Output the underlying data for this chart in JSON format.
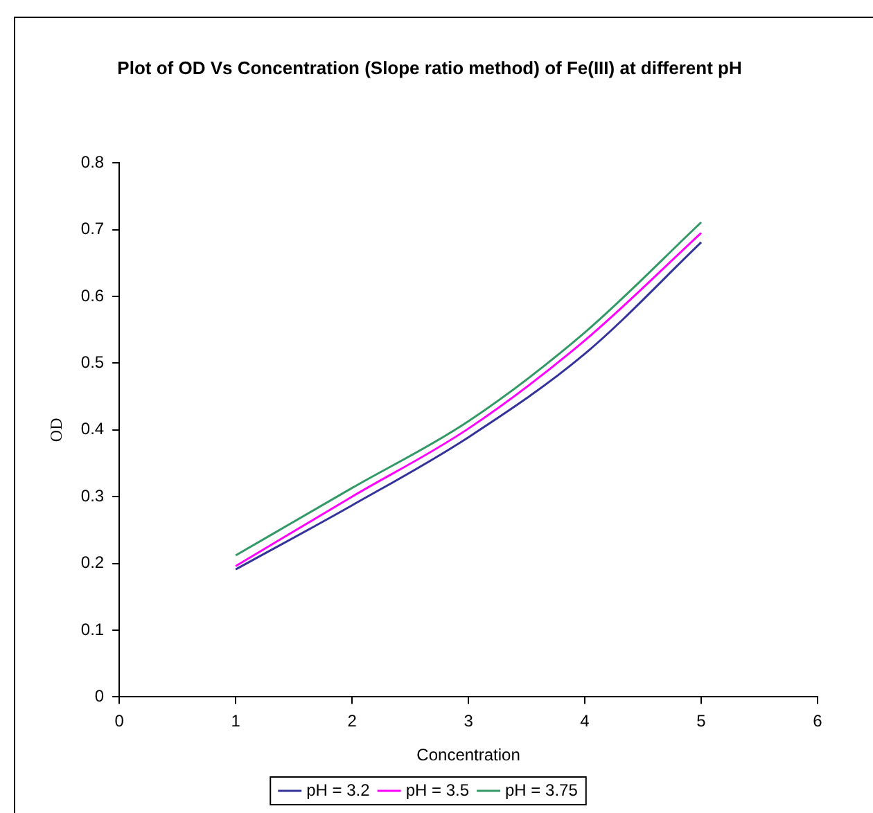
{
  "chart_data": {
    "type": "line",
    "title": "Plot of OD Vs Concentration (Slope ratio method) of Fe(III) at different pH",
    "xlabel": "Concentration",
    "ylabel": "OD",
    "x": [
      1,
      2,
      3,
      4,
      5
    ],
    "series": [
      {
        "name": "pH = 3.2",
        "color": "#333399",
        "values": [
          0.191,
          0.287,
          0.389,
          0.514,
          0.681
        ]
      },
      {
        "name": "pH = 3.5",
        "color": "#ff00ff",
        "values": [
          0.196,
          0.3,
          0.402,
          0.534,
          0.695
        ]
      },
      {
        "name": "pH = 3.75",
        "color": "#339966",
        "values": [
          0.212,
          0.313,
          0.413,
          0.546,
          0.711
        ]
      }
    ],
    "xlim": [
      0,
      6
    ],
    "xticks": [
      0,
      1,
      2,
      3,
      4,
      5,
      6
    ],
    "ylim": [
      0,
      0.8
    ],
    "yticks": [
      0,
      0.1,
      0.2,
      0.3,
      0.4,
      0.5,
      0.6,
      0.7,
      0.8
    ],
    "grid": false,
    "legend": "bottom",
    "marker": "none",
    "line_style": "solid"
  }
}
